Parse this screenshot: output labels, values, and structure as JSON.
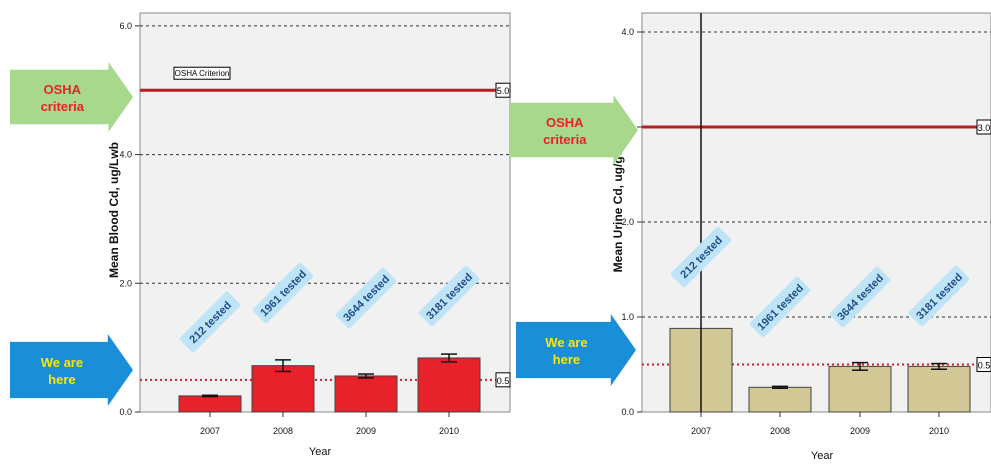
{
  "chart_data": [
    {
      "type": "bar",
      "ylabel": "Mean Blood Cd, ug/Lwb",
      "xlabel": "Year",
      "categories": [
        "2007",
        "2008",
        "2009",
        "2010"
      ],
      "values": [
        0.25,
        0.72,
        0.56,
        0.84
      ],
      "error": [
        [
          0.24,
          0.26
        ],
        [
          0.63,
          0.81
        ],
        [
          0.53,
          0.59
        ],
        [
          0.78,
          0.9
        ]
      ],
      "ylim": [
        0,
        6.2
      ],
      "yticks": [
        "0.0",
        "2.0",
        "4.0",
        "6.0"
      ],
      "ytick_values": [
        0,
        2,
        4,
        6
      ],
      "tested": [
        "212 tested",
        "1961 tested",
        "3644 tested",
        "3181 tested"
      ],
      "criterion_value": 5.0,
      "criterion_label": "5.0",
      "criterion_caption": "OSHA Criterion",
      "reference_value": 0.5,
      "reference_label": "0.5",
      "bar_color": "#e8222a",
      "grid": "dashed"
    },
    {
      "type": "bar",
      "ylabel": "Mean Urine Cd, ug/gC",
      "xlabel": "Year",
      "categories": [
        "2007",
        "2008",
        "2009",
        "2010"
      ],
      "values": [
        0.88,
        0.26,
        0.48,
        0.48
      ],
      "error": [
        [
          -2.0,
          6.0
        ],
        [
          0.25,
          0.27
        ],
        [
          0.44,
          0.52
        ],
        [
          0.45,
          0.51
        ]
      ],
      "ylim": [
        0,
        4.2
      ],
      "yticks": [
        "0.0",
        "1.0",
        "2.0",
        "3.0",
        "4.0"
      ],
      "ytick_values": [
        0,
        1,
        2,
        3,
        4
      ],
      "tested": [
        "212 tested",
        "1961 tested",
        "3644 tested",
        "3181 tested"
      ],
      "criterion_value": 3.0,
      "criterion_label": "3.0",
      "reference_value": 0.5,
      "reference_label": "0.5",
      "bar_color": "#d2c896",
      "grid": "dashed"
    }
  ],
  "arrows": {
    "osha_label": [
      "OSHA",
      "criteria"
    ],
    "here_label": [
      "We are",
      "here"
    ],
    "osha_color": "#a8d88c",
    "here_color": "#1a8fd8",
    "osha_text_color": "#e8222a",
    "here_text_color": "#ffe600"
  }
}
